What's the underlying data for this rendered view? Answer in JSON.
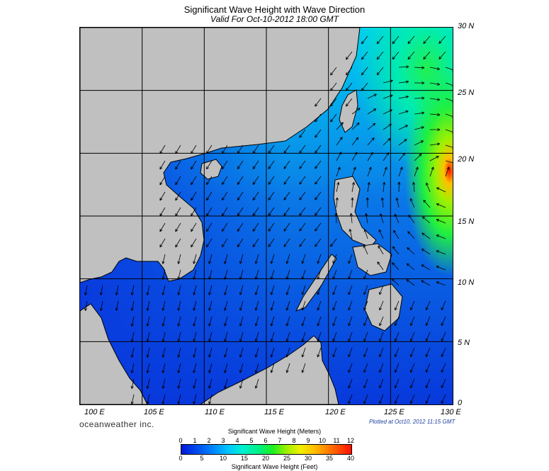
{
  "title": "Significant Wave Height with Wave Direction",
  "subtitle": "Valid For Oct-10-2012 18:00 GMT",
  "lat_labels": [
    "30 N",
    "25 N",
    "20 N",
    "15 N",
    "10 N",
    "5 N",
    "0"
  ],
  "lon_labels": [
    "100 E",
    "105 E",
    "110 E",
    "115 E",
    "120 E",
    "125 E",
    "130 E"
  ],
  "brand": "oceanweather inc.",
  "plotted": "Plotted at Oct10, 2012 11:15 GMT",
  "colorbar": {
    "meters_title": "Significant Wave Height (Meters)",
    "meters_ticks": [
      "0",
      "1",
      "2",
      "3",
      "4",
      "5",
      "6",
      "7",
      "8",
      "9",
      "10",
      "11",
      "12"
    ],
    "feet_title": "Significant Wave Height (Feet)",
    "feet_ticks": [
      "0",
      "5",
      "10",
      "15",
      "20",
      "25",
      "30",
      "35",
      "40"
    ]
  },
  "colors": {
    "land": "#c0c0c0",
    "low_wave": "#0a3ee0",
    "mid_wave": "#00c8ff",
    "high_wave": "#ff2000"
  }
}
